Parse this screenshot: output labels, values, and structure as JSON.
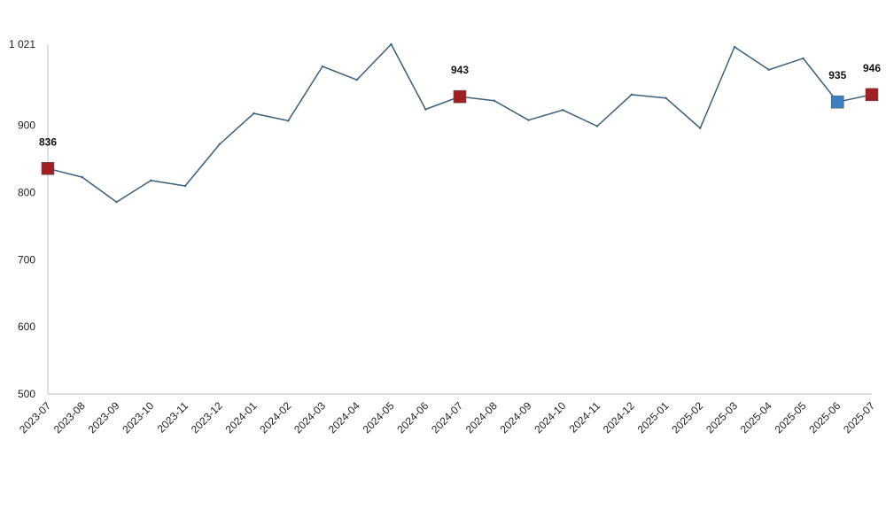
{
  "chart_data": {
    "type": "line",
    "title": "",
    "xlabel": "",
    "ylabel": "",
    "ylim": [
      500,
      1021
    ],
    "y_ticks": [
      {
        "value": 500,
        "label": "500"
      },
      {
        "value": 600,
        "label": "600"
      },
      {
        "value": 700,
        "label": "700"
      },
      {
        "value": 800,
        "label": "800"
      },
      {
        "value": 900,
        "label": "900"
      },
      {
        "value": 1021,
        "label": "1 021"
      }
    ],
    "grid": false,
    "categories": [
      "2023-07",
      "2023-08",
      "2023-09",
      "2023-10",
      "2023-11",
      "2023-12",
      "2024-01",
      "2024-02",
      "2024-03",
      "2024-04",
      "2024-05",
      "2024-06",
      "2024-07",
      "2024-08",
      "2024-09",
      "2024-10",
      "2024-11",
      "2024-12",
      "2025-01",
      "2025-02",
      "2025-03",
      "2025-04",
      "2025-05",
      "2025-06",
      "2025-07"
    ],
    "series": [
      {
        "values": [
          836,
          823,
          786,
          818,
          810,
          872,
          918,
          907,
          988,
          968,
          1021,
          924,
          943,
          937,
          908,
          923,
          899,
          946,
          941,
          896,
          1017,
          983,
          1000,
          935,
          946
        ],
        "color": "#3a5f7d"
      }
    ],
    "highlights": [
      {
        "index": 0,
        "label": "836",
        "color": "#a31e22"
      },
      {
        "index": 12,
        "label": "943",
        "color": "#a31e22"
      },
      {
        "index": 23,
        "label": "935",
        "color": "#3d7fc1"
      },
      {
        "index": 24,
        "label": "946",
        "color": "#a31e22"
      }
    ]
  }
}
